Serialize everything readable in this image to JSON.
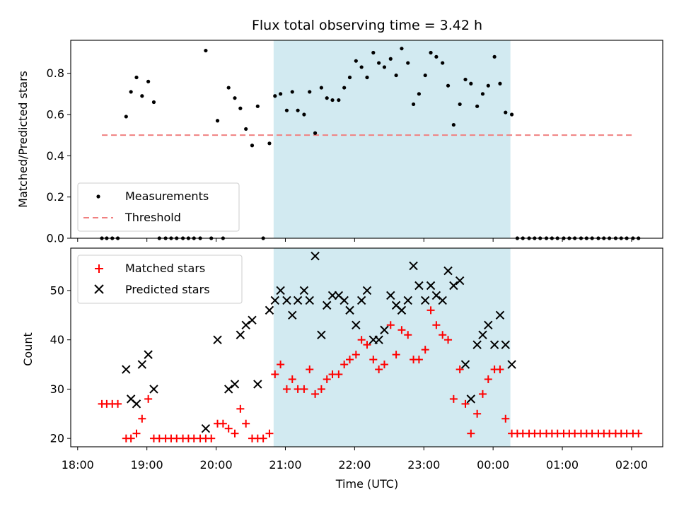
{
  "chart_data": {
    "type": "scatter",
    "title": "Flux total observing time = 3.42 h",
    "xlabel": "Time (UTC)",
    "x_unit": "hours",
    "x_ticks": [
      {
        "value": 18,
        "label": "18:00"
      },
      {
        "value": 19,
        "label": "19:00"
      },
      {
        "value": 20,
        "label": "20:00"
      },
      {
        "value": 21,
        "label": "21:00"
      },
      {
        "value": 22,
        "label": "22:00"
      },
      {
        "value": 23,
        "label": "23:00"
      },
      {
        "value": 24,
        "label": "00:00"
      },
      {
        "value": 25,
        "label": "01:00"
      },
      {
        "value": 26,
        "label": "02:00"
      }
    ],
    "xlim": [
      17.9,
      26.45
    ],
    "shaded_span": {
      "x0": 20.83,
      "x1": 24.25,
      "color": "#add8e6"
    },
    "panels": [
      {
        "ylabel": "Matched/Predicted stars",
        "ylim": [
          0,
          0.96
        ],
        "yticks": [
          0.0,
          0.2,
          0.4,
          0.6,
          0.8
        ],
        "ytick_labels": [
          "0.0",
          "0.2",
          "0.4",
          "0.6",
          "0.8"
        ],
        "legend_position": "lower-left",
        "series": [
          {
            "name": "Measurements",
            "marker": "dot",
            "color": "#000000",
            "x": [
              18.35,
              18.42,
              18.5,
              18.58,
              18.7,
              18.77,
              18.85,
              18.93,
              19.02,
              19.1,
              19.18,
              19.27,
              19.35,
              19.43,
              19.52,
              19.6,
              19.68,
              19.77,
              19.85,
              19.93,
              20.02,
              20.1,
              20.18,
              20.27,
              20.35,
              20.43,
              20.52,
              20.6,
              20.68,
              20.77,
              20.85,
              20.93,
              21.02,
              21.1,
              21.18,
              21.27,
              21.35,
              21.43,
              21.52,
              21.6,
              21.68,
              21.77,
              21.85,
              21.93,
              22.02,
              22.1,
              22.18,
              22.27,
              22.35,
              22.43,
              22.52,
              22.6,
              22.68,
              22.77,
              22.85,
              22.93,
              23.02,
              23.1,
              23.18,
              23.27,
              23.35,
              23.43,
              23.52,
              23.6,
              23.68,
              23.77,
              23.85,
              23.93,
              24.02,
              24.1,
              24.18,
              24.27,
              24.35,
              24.43,
              24.52,
              24.6,
              24.68,
              24.77,
              24.85,
              24.93,
              25.02,
              25.1,
              25.18,
              25.27,
              25.35,
              25.43,
              25.52,
              25.6,
              25.68,
              25.77,
              25.85,
              25.93,
              26.02,
              26.1
            ],
            "y": [
              0,
              0,
              0,
              0,
              0.59,
              0.71,
              0.78,
              0.69,
              0.76,
              0.66,
              0,
              0,
              0,
              0,
              0,
              0,
              0,
              0,
              0.91,
              0,
              0.57,
              0,
              0.73,
              0.68,
              0.63,
              0.53,
              0.45,
              0.64,
              0,
              0.46,
              0.69,
              0.7,
              0.62,
              0.71,
              0.62,
              0.6,
              0.71,
              0.51,
              0.73,
              0.68,
              0.67,
              0.67,
              0.73,
              0.78,
              0.86,
              0.83,
              0.78,
              0.9,
              0.85,
              0.83,
              0.87,
              0.79,
              0.92,
              0.85,
              0.65,
              0.7,
              0.79,
              0.9,
              0.88,
              0.85,
              0.74,
              0.55,
              0.65,
              0.77,
              0.75,
              0.64,
              0.7,
              0.74,
              0.88,
              0.75,
              0.61,
              0.6,
              0,
              0,
              0,
              0,
              0,
              0,
              0,
              0,
              0,
              0,
              0,
              0,
              0,
              0,
              0,
              0,
              0,
              0,
              0,
              0,
              0,
              0
            ]
          },
          {
            "name": "Threshold",
            "marker": "dashed-line",
            "color": "#f08080",
            "x": [
              18.35,
              26.05
            ],
            "y": [
              0.5,
              0.5
            ]
          }
        ]
      },
      {
        "ylabel": "Count",
        "ylim": [
          18.3,
          58.6
        ],
        "yticks": [
          20,
          30,
          40,
          50
        ],
        "ytick_labels": [
          "20",
          "30",
          "40",
          "50"
        ],
        "legend_position": "upper-left",
        "series": [
          {
            "name": "Matched stars",
            "marker": "plus",
            "color": "#ff0000",
            "x": [
              18.35,
              18.42,
              18.5,
              18.58,
              18.7,
              18.77,
              18.85,
              18.93,
              19.02,
              19.1,
              19.18,
              19.27,
              19.35,
              19.43,
              19.52,
              19.6,
              19.68,
              19.77,
              19.85,
              19.93,
              20.02,
              20.1,
              20.18,
              20.27,
              20.35,
              20.43,
              20.52,
              20.6,
              20.68,
              20.77,
              20.85,
              20.93,
              21.02,
              21.1,
              21.18,
              21.27,
              21.35,
              21.43,
              21.52,
              21.6,
              21.68,
              21.77,
              21.85,
              21.93,
              22.02,
              22.1,
              22.18,
              22.27,
              22.35,
              22.43,
              22.52,
              22.6,
              22.68,
              22.77,
              22.85,
              22.93,
              23.02,
              23.1,
              23.18,
              23.27,
              23.35,
              23.43,
              23.52,
              23.6,
              23.68,
              23.77,
              23.85,
              23.93,
              24.02,
              24.1,
              24.18,
              24.27,
              24.35,
              24.43,
              24.52,
              24.6,
              24.68,
              24.77,
              24.85,
              24.93,
              25.02,
              25.1,
              25.18,
              25.27,
              25.35,
              25.43,
              25.52,
              25.6,
              25.68,
              25.77,
              25.85,
              25.93,
              26.02,
              26.1
            ],
            "y": [
              27,
              27,
              27,
              27,
              20,
              20,
              21,
              24,
              28,
              20,
              20,
              20,
              20,
              20,
              20,
              20,
              20,
              20,
              20,
              20,
              23,
              23,
              22,
              21,
              26,
              23,
              20,
              20,
              20,
              21,
              33,
              35,
              30,
              32,
              30,
              30,
              34,
              29,
              30,
              32,
              33,
              33,
              35,
              36,
              37,
              40,
              39,
              36,
              34,
              35,
              43,
              37,
              42,
              41,
              36,
              36,
              38,
              46,
              43,
              41,
              40,
              28,
              34,
              27,
              21,
              25,
              29,
              32,
              34,
              34,
              24,
              21,
              21,
              21,
              21,
              21,
              21,
              21,
              21,
              21,
              21,
              21,
              21,
              21,
              21,
              21,
              21,
              21,
              21,
              21,
              21,
              21,
              21,
              21
            ]
          },
          {
            "name": "Predicted stars",
            "marker": "x",
            "color": "#000000",
            "x": [
              18.7,
              18.77,
              18.85,
              18.93,
              19.02,
              19.1,
              19.85,
              20.02,
              20.18,
              20.27,
              20.35,
              20.43,
              20.52,
              20.6,
              20.77,
              20.85,
              20.93,
              21.02,
              21.1,
              21.18,
              21.27,
              21.35,
              21.43,
              21.52,
              21.6,
              21.68,
              21.77,
              21.85,
              21.93,
              22.02,
              22.1,
              22.18,
              22.27,
              22.35,
              22.43,
              22.52,
              22.6,
              22.68,
              22.77,
              22.85,
              22.93,
              23.02,
              23.1,
              23.18,
              23.27,
              23.35,
              23.43,
              23.52,
              23.6,
              23.68,
              23.77,
              23.85,
              23.93,
              24.02,
              24.1,
              24.18,
              24.27
            ],
            "y": [
              34,
              28,
              27,
              35,
              37,
              30,
              22,
              40,
              30,
              31,
              41,
              43,
              44,
              31,
              46,
              48,
              50,
              48,
              45,
              48,
              50,
              48,
              57,
              41,
              47,
              49,
              49,
              48,
              46,
              43,
              48,
              50,
              40,
              40,
              42,
              49,
              47,
              46,
              48,
              55,
              51,
              48,
              51,
              49,
              48,
              54,
              51,
              52,
              35,
              28,
              39,
              41,
              43,
              39,
              45,
              39,
              35
            ]
          }
        ]
      }
    ]
  }
}
